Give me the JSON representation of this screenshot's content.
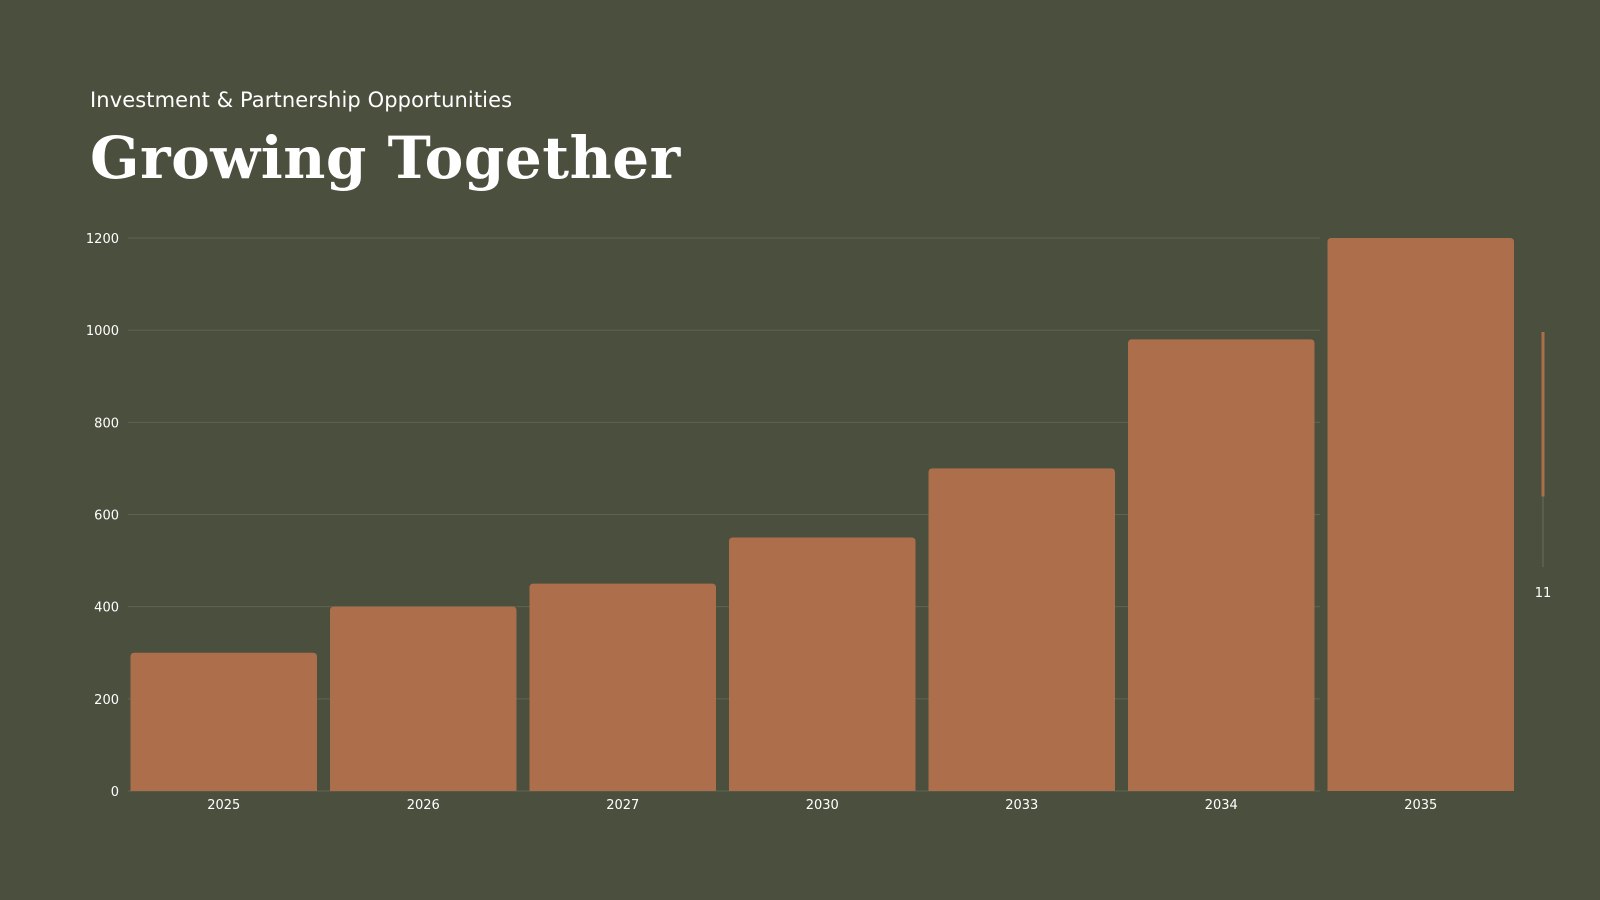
{
  "slide": {
    "subtitle": "Investment & Partnership Opportunities",
    "title": "Growing Together"
  },
  "colors": {
    "background": "#4b4f3e",
    "bar": "#ad6e4b",
    "grid": "#5f6352",
    "text": "#ffffff"
  },
  "chart_data": {
    "type": "bar",
    "categories": [
      "2025",
      "2026",
      "2027",
      "2030",
      "2033",
      "2034",
      "2035"
    ],
    "values": [
      300,
      400,
      450,
      550,
      700,
      980,
      1200
    ],
    "ylim": [
      0,
      1200
    ],
    "yticks": [
      0,
      200,
      400,
      600,
      800,
      1000,
      1200
    ],
    "xlabel": "",
    "ylabel": "",
    "grid": true
  },
  "side_indicator": {
    "label": "11",
    "fill_fraction": 0.7
  }
}
